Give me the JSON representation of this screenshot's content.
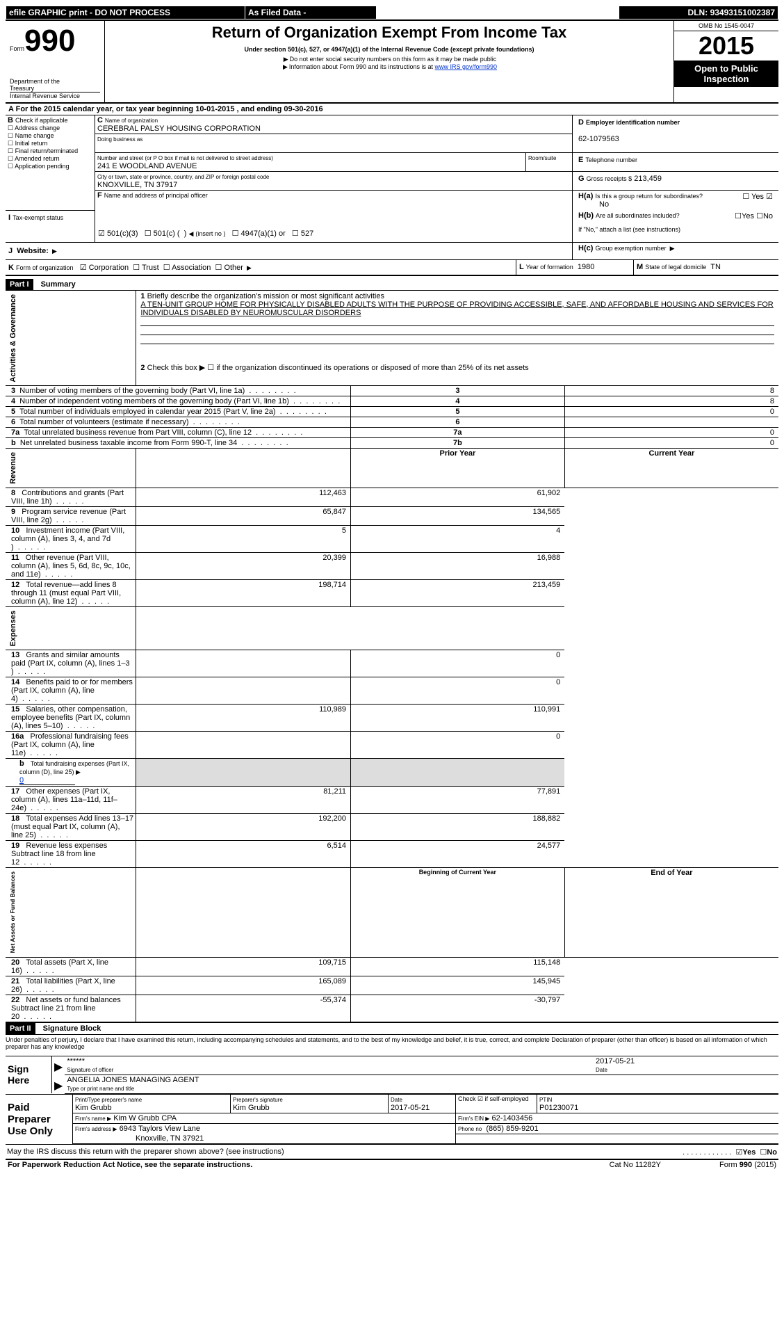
{
  "topbar": {
    "efile": "efile GRAPHIC print - DO NOT PROCESS",
    "asfiled": "As Filed Data -",
    "dln_label": "DLN:",
    "dln": "93493151002387"
  },
  "header": {
    "form_prefix": "Form",
    "form_no": "990",
    "dept1": "Department of the",
    "dept2": "Treasury",
    "dept3": "Internal Revenue Service",
    "title": "Return of Organization Exempt From Income Tax",
    "sub1": "Under section 501(c), 527, or 4947(a)(1) of the Internal Revenue Code (except private foundations)",
    "sub2": "Do not enter social security numbers on this form as it may be made public",
    "sub3_pre": "Information about Form 990 and its instructions is at ",
    "sub3_link": "www IRS gov/form990",
    "omb": "OMB No 1545-0047",
    "year": "2015",
    "open": "Open to Public Inspection"
  },
  "A": {
    "text": "For the 2015 calendar year, or tax year beginning 10-01-2015    , and ending 09-30-2016"
  },
  "B": {
    "label": "Check if applicable",
    "items": [
      "Address change",
      "Name change",
      "Initial return",
      "Final return/terminated",
      "Amended return",
      "Application pending"
    ]
  },
  "C": {
    "name_label": "Name of organization",
    "name": "CEREBRAL PALSY HOUSING CORPORATION",
    "dba_label": "Doing business as",
    "street_label": "Number and street (or P O  box if mail is not delivered to street address)",
    "room_label": "Room/suite",
    "street": "241 E WOODLAND AVENUE",
    "city_label": "City or town, state or province, country, and ZIP or foreign postal code",
    "city": "KNOXVILLE, TN  37917"
  },
  "D": {
    "label": "Employer identification number",
    "value": "62-1079563"
  },
  "E": {
    "label": "Telephone number"
  },
  "F": {
    "label": "Name and address of principal officer"
  },
  "G": {
    "label": "Gross receipts $",
    "value": "213,459"
  },
  "H": {
    "a": "Is this a group return for subordinates?",
    "a_no": "No",
    "b": "Are all subordinates included?",
    "b_note": "If \"No,\" attach a list  (see instructions)",
    "c": "Group exemption number",
    "yes": "Yes",
    "no": "No"
  },
  "I": {
    "label": "Tax-exempt status",
    "o1": "501(c)(3)",
    "o2_a": "501(c) (",
    "o2_b": ")",
    "o2_c": "(insert no )",
    "o3": "4947(a)(1) or",
    "o4": "527"
  },
  "J": {
    "label": "Website:"
  },
  "K": {
    "label": "Form of organization",
    "o1": "Corporation",
    "o2": "Trust",
    "o3": "Association",
    "o4": "Other"
  },
  "L": {
    "label": "Year of formation",
    "value": "1980"
  },
  "M": {
    "label": "State of legal domicile",
    "value": "TN"
  },
  "part1": {
    "label": "Part I",
    "title": "Summary",
    "side_ag": "Activities & Governance",
    "side_rev": "Revenue",
    "side_exp": "Expenses",
    "side_na": "Net Assets or Fund Balances",
    "q1": "Briefly describe the organization's mission or most significant activities",
    "q1_ans": "A TEN-UNIT GROUP HOME FOR PHYSICALLY DISABLED ADULTS WITH THE PURPOSE OF PROVIDING ACCESSIBLE, SAFE, AND AFFORDABLE HOUSING AND SERVICES FOR INDIVIDUALS DISABLED BY NEUROMUSCULAR DISORDERS",
    "q2": "Check this box ▶ ☐ if the organization discontinued its operations or disposed of more than 25% of its net assets",
    "rows_ag": [
      {
        "n": "3",
        "t": "Number of voting members of the governing body (Part VI, line 1a)",
        "k": "3",
        "v": "8"
      },
      {
        "n": "4",
        "t": "Number of independent voting members of the governing body (Part VI, line 1b)",
        "k": "4",
        "v": "8"
      },
      {
        "n": "5",
        "t": "Total number of individuals employed in calendar year 2015 (Part V, line 2a)",
        "k": "5",
        "v": "0"
      },
      {
        "n": "6",
        "t": "Total number of volunteers (estimate if necessary)",
        "k": "6",
        "v": ""
      },
      {
        "n": "7a",
        "t": "Total unrelated business revenue from Part VIII, column (C), line 12",
        "k": "7a",
        "v": "0"
      },
      {
        "n": "b",
        "t": "Net unrelated business taxable income from Form 990-T, line 34",
        "k": "7b",
        "v": "0"
      }
    ],
    "hdr_prior": "Prior Year",
    "hdr_curr": "Current Year",
    "rows_rev": [
      {
        "n": "8",
        "t": "Contributions and grants (Part VIII, line 1h)",
        "p": "112,463",
        "c": "61,902"
      },
      {
        "n": "9",
        "t": "Program service revenue (Part VIII, line 2g)",
        "p": "65,847",
        "c": "134,565"
      },
      {
        "n": "10",
        "t": "Investment income (Part VIII, column (A), lines 3, 4, and 7d )",
        "p": "5",
        "c": "4"
      },
      {
        "n": "11",
        "t": "Other revenue (Part VIII, column (A), lines 5, 6d, 8c, 9c, 10c, and 11e)",
        "p": "20,399",
        "c": "16,988"
      },
      {
        "n": "12",
        "t": "Total revenue—add lines 8 through 11 (must equal Part VIII, column (A), line 12)",
        "p": "198,714",
        "c": "213,459"
      }
    ],
    "rows_exp": [
      {
        "n": "13",
        "t": "Grants and similar amounts paid (Part IX, column (A), lines 1–3 )",
        "p": "",
        "c": "0"
      },
      {
        "n": "14",
        "t": "Benefits paid to or for members (Part IX, column (A), line 4)",
        "p": "",
        "c": "0"
      },
      {
        "n": "15",
        "t": "Salaries, other compensation, employee benefits (Part IX, column (A), lines 5–10)",
        "p": "110,989",
        "c": "110,991"
      },
      {
        "n": "16a",
        "t": "Professional fundraising fees (Part IX, column (A), line 11e)",
        "p": "",
        "c": "0"
      }
    ],
    "row_16b_a": "Total fundraising expenses (Part IX, column (D), line 25) ▶",
    "row_16b_v": "0",
    "rows_exp2": [
      {
        "n": "17",
        "t": "Other expenses (Part IX, column (A), lines 11a–11d, 11f–24e)",
        "p": "81,211",
        "c": "77,891"
      },
      {
        "n": "18",
        "t": "Total expenses  Add lines 13–17 (must equal Part IX, column (A), line 25)",
        "p": "192,200",
        "c": "188,882"
      },
      {
        "n": "19",
        "t": "Revenue less expenses  Subtract line 18 from line 12",
        "p": "6,514",
        "c": "24,577"
      }
    ],
    "hdr_boy": "Beginning of Current Year",
    "hdr_eoy": "End of Year",
    "rows_na": [
      {
        "n": "20",
        "t": "Total assets (Part X, line 16)",
        "p": "109,715",
        "c": "115,148"
      },
      {
        "n": "21",
        "t": "Total liabilities (Part X, line 26)",
        "p": "165,089",
        "c": "145,945"
      },
      {
        "n": "22",
        "t": "Net assets or fund balances  Subtract line 21 from line 20",
        "p": "-55,374",
        "c": "-30,797"
      }
    ]
  },
  "part2": {
    "label": "Part II",
    "title": "Signature Block",
    "decl": "Under penalties of perjury, I declare that I have examined this return, including accompanying schedules and statements, and to the best of my knowledge and belief, it is true, correct, and complete  Declaration of preparer (other than officer) is based on all information of which preparer has any knowledge",
    "sign_here": "Sign Here",
    "sig_stars": "******",
    "sig_label": "Signature of officer",
    "sig_date": "2017-05-21",
    "date_label": "Date",
    "officer_name": "ANGELIA JONES MANAGING AGENT",
    "officer_label": "Type or print name and title",
    "paid": "Paid Preparer Use Only",
    "prep_name_label": "Print/Type preparer's name",
    "prep_name": "Kim Grubb",
    "prep_sig_label": "Preparer's signature",
    "prep_sig": "Kim Grubb",
    "prep_date": "2017-05-21",
    "check_label": "Check ☑ if self-employed",
    "ptin_label": "PTIN",
    "ptin": "P01230071",
    "firm_name_label": "Firm's name    ▶",
    "firm_name": "Kim W Grubb CPA",
    "firm_ein_label": "Firm's EIN ▶",
    "firm_ein": "62-1403456",
    "firm_addr_label": "Firm's address ▶",
    "firm_addr1": "6943 Taylors View Lane",
    "firm_addr2": "Knoxville, TN  37921",
    "phone_label": "Phone no",
    "phone": "(865) 859-9201",
    "may_irs": "May the IRS discuss this return with the preparer shown above? (see instructions)",
    "yes": "Yes",
    "no": "No"
  },
  "footer": {
    "pra": "For Paperwork Reduction Act Notice, see the separate instructions.",
    "cat": "Cat No  11282Y",
    "form": "Form",
    "form_no": "990",
    "form_yr": "(2015)"
  }
}
